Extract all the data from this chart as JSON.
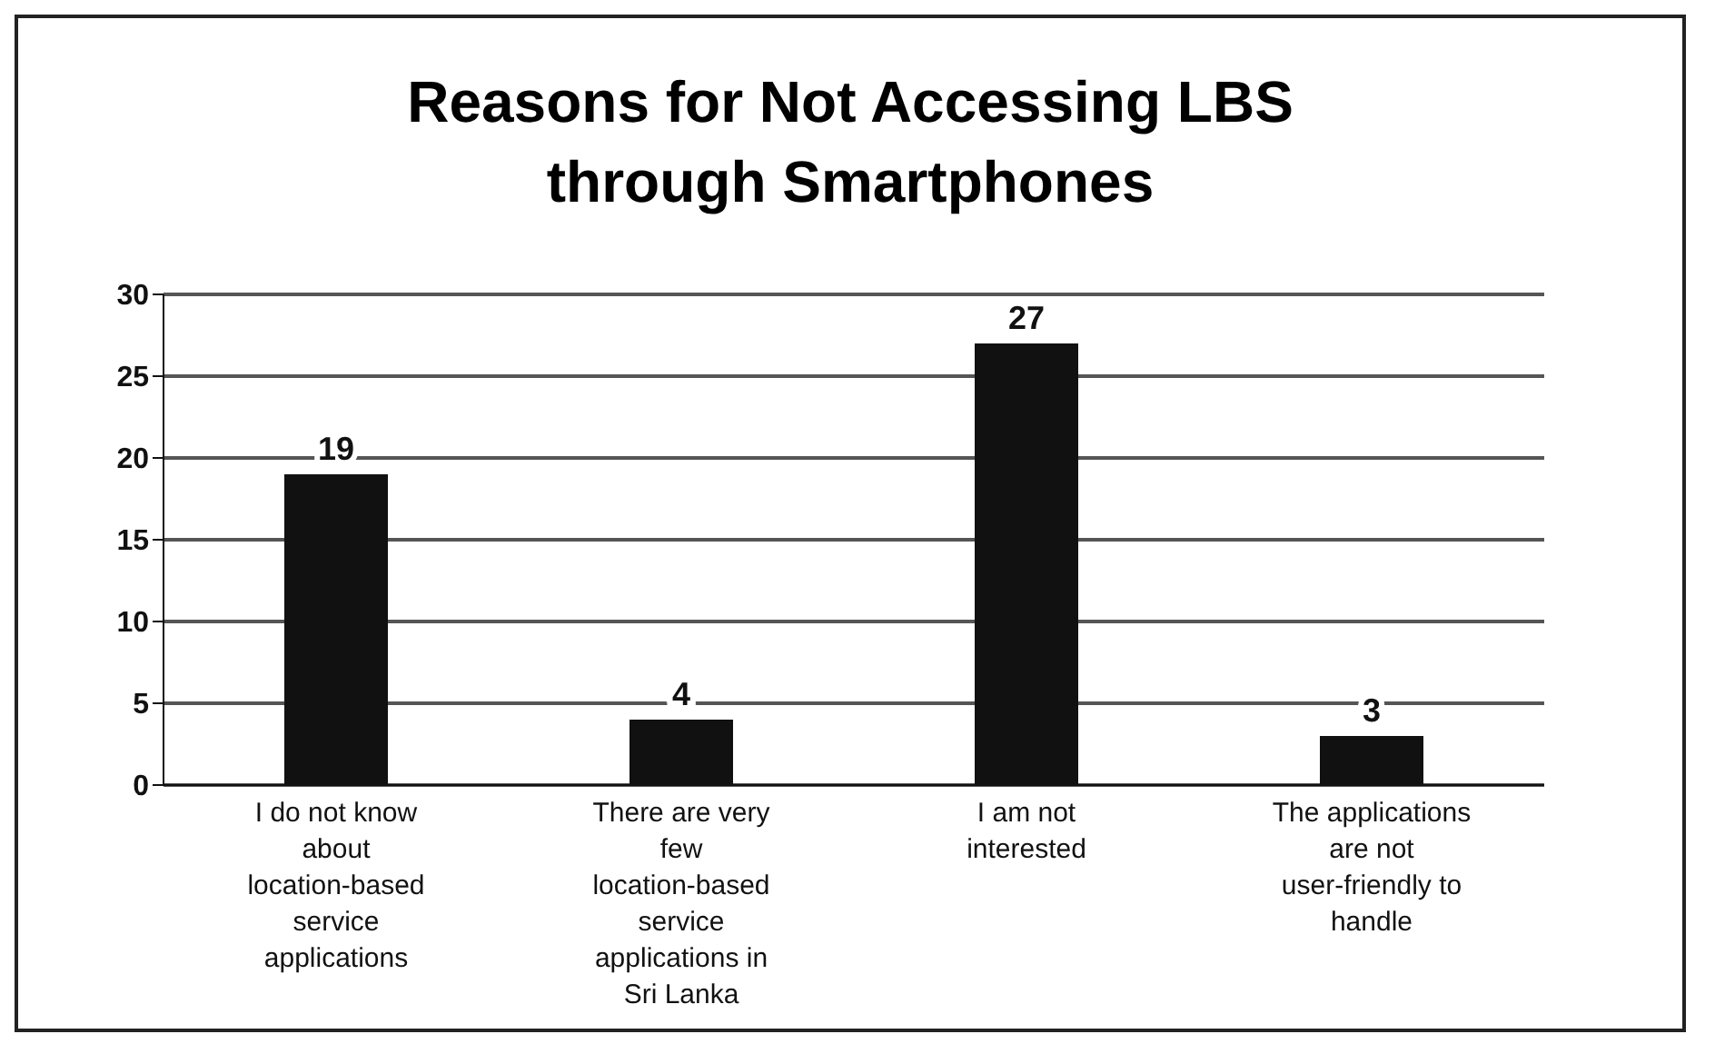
{
  "chart_data": {
    "type": "bar",
    "title": "Reasons for Not Accessing LBS through Smartphones",
    "categories": [
      "I do not know about location-based service applications",
      "There are very few location-based service applications in Sri Lanka",
      "I am not interested",
      "The applications are not user-friendly to handle"
    ],
    "values": [
      19,
      4,
      27,
      3
    ],
    "color": "#111111",
    "ylim": [
      0,
      30
    ],
    "yticks": [
      0,
      5,
      10,
      15,
      20,
      25,
      30
    ],
    "grid": "y",
    "data_labels": true
  }
}
